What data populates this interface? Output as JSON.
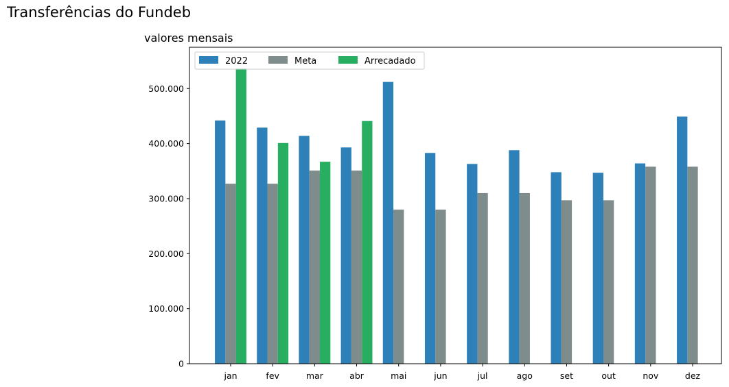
{
  "figure": {
    "title": "Transferências do Fundeb"
  },
  "chart_data": {
    "type": "bar",
    "title": "valores mensais",
    "xlabel": "",
    "ylabel": "",
    "categories": [
      "jan",
      "fev",
      "mar",
      "abr",
      "mai",
      "jun",
      "jul",
      "ago",
      "set",
      "out",
      "nov",
      "dez"
    ],
    "series": [
      {
        "name": "2022",
        "color": "#2e80b9",
        "values": [
          442000,
          429000,
          414000,
          393000,
          512000,
          383000,
          363000,
          388000,
          348000,
          347000,
          364000,
          449000
        ]
      },
      {
        "name": "Meta",
        "color": "#7f8c8c",
        "values": [
          327000,
          327000,
          351000,
          351000,
          280000,
          280000,
          310000,
          310000,
          297000,
          297000,
          358000,
          358000
        ]
      },
      {
        "name": "Arrecadado",
        "color": "#27ae60",
        "values": [
          537000,
          401000,
          367000,
          441000,
          null,
          null,
          null,
          null,
          null,
          null,
          null,
          null
        ]
      }
    ],
    "yticks": [
      {
        "value": 0,
        "label": "0"
      },
      {
        "value": 100000,
        "label": "100.000"
      },
      {
        "value": 200000,
        "label": "200.000"
      },
      {
        "value": 300000,
        "label": "300.000"
      },
      {
        "value": 400000,
        "label": "400.000"
      },
      {
        "value": 500000,
        "label": "500.000"
      }
    ],
    "ylim": [
      0,
      575000
    ],
    "grid": false,
    "legend": {
      "position": "top-left",
      "columns": 3
    }
  }
}
